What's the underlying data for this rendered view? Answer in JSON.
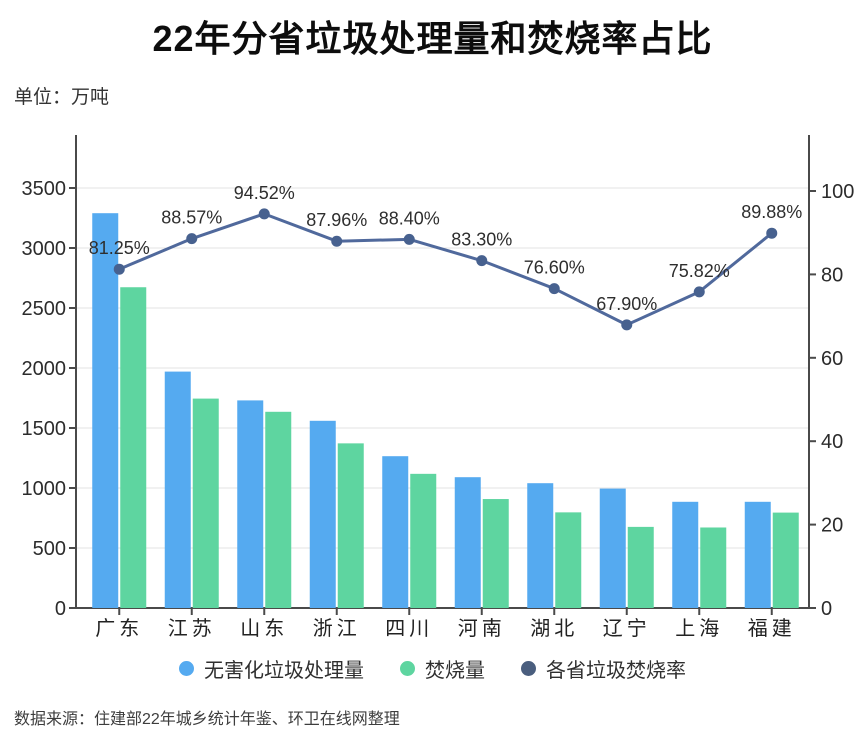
{
  "title": "22年分省垃圾处理量和焚烧率占比",
  "unit_label": "单位：万吨",
  "source": "数据来源：住建部22年城乡统计年鉴、环卫在线网整理",
  "colors": {
    "treatment_bar": "#55aaf0",
    "incineration_bar": "#5ed5a0",
    "rate_line": "#50699c",
    "rate_point": "#47618f",
    "legend_rate_dot": "#4a5e7e",
    "axis_line": "#4a4a4a",
    "gridline": "#e3e3e3",
    "axis_text": "#2b2b2b",
    "data_label_text": "#2e2e2e"
  },
  "legend": [
    {
      "label": "无害化垃圾处理量",
      "color": "#55aaf0"
    },
    {
      "label": "焚烧量",
      "color": "#5ed5a0"
    },
    {
      "label": "各省垃圾焚烧率",
      "color": "#4a5e7e"
    }
  ],
  "chart_data": {
    "type": "bar",
    "combo": "bar+line",
    "title": "22年分省垃圾处理量和焚烧率占比",
    "unit": "万吨",
    "categories": [
      "广东",
      "江苏",
      "山东",
      "浙江",
      "四川",
      "河南",
      "湖北",
      "辽宁",
      "上海",
      "福建"
    ],
    "series": [
      {
        "name": "无害化垃圾处理量",
        "type": "bar",
        "axis": "left",
        "color": "#55aaf0",
        "values": [
          3290,
          1970,
          1730,
          1560,
          1265,
          1090,
          1040,
          995,
          885,
          885
        ]
      },
      {
        "name": "焚烧量",
        "type": "bar",
        "axis": "left",
        "color": "#5ed5a0",
        "values": [
          2673,
          1745,
          1635,
          1372,
          1118,
          908,
          797,
          676,
          671,
          795
        ]
      },
      {
        "name": "各省垃圾焚烧率",
        "type": "line",
        "axis": "right",
        "color": "#50699c",
        "values": [
          81.25,
          88.57,
          94.52,
          87.96,
          88.4,
          83.3,
          76.6,
          67.9,
          75.82,
          89.88
        ],
        "labels": [
          "81.25%",
          "88.57%",
          "94.52%",
          "87.96%",
          "88.40%",
          "83.30%",
          "76.60%",
          "67.90%",
          "75.82%",
          "89.88%"
        ]
      }
    ],
    "left_axis": {
      "min": 0,
      "max": 3500,
      "step": 500,
      "ticks": [
        "0",
        "500",
        "1000",
        "1500",
        "2000",
        "2500",
        "3000",
        "3500"
      ]
    },
    "right_axis": {
      "min": 0,
      "max": 100,
      "step": 20,
      "ticks": [
        "0",
        "20",
        "40",
        "60",
        "80",
        "100"
      ]
    },
    "grid": true,
    "legend_position": "bottom"
  }
}
